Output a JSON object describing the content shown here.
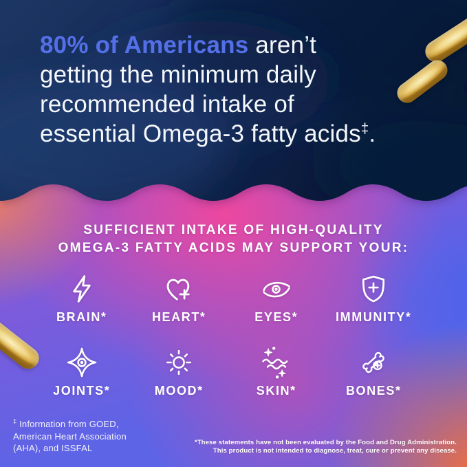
{
  "hero": {
    "line1_highlight": "80% of Americans",
    "line1_rest": " aren’t",
    "line2": "getting the minimum daily",
    "line3": "recommended intake of",
    "line4": "essential Omega-3 fatty acids",
    "line4_marker": "‡",
    "line4_period": "."
  },
  "benefits": {
    "heading_line1": "SUFFICIENT INTAKE OF HIGH-QUALITY",
    "heading_line2": "OMEGA-3 FATTY ACIDS MAY SUPPORT YOUR:",
    "items": [
      {
        "label": "BRAIN*",
        "icon": "lightning-icon"
      },
      {
        "label": "HEART*",
        "icon": "heart-plus-icon"
      },
      {
        "label": "EYES*",
        "icon": "eye-icon"
      },
      {
        "label": "IMMUNITY*",
        "icon": "shield-plus-icon"
      },
      {
        "label": "JOINTS*",
        "icon": "joint-star-icon"
      },
      {
        "label": "MOOD*",
        "icon": "sun-icon"
      },
      {
        "label": "SKIN*",
        "icon": "skin-sparkles-icon"
      },
      {
        "label": "BONES*",
        "icon": "bone-plus-icon"
      }
    ]
  },
  "footnotes": {
    "left_marker": "‡",
    "left_text": "Information from GOED,\nAmerican Heart Association\n(AHA), and ISSFAL",
    "right": "*These statements have not been evaluated by the Food and Drug Administration.\nThis product is not intended to diagnose, treat, cure or prevent any disease."
  },
  "decor": {
    "capsule_count": 3
  },
  "colors": {
    "navy_top": "#13294f",
    "navy_dark": "#0a1834",
    "headline_blue": "#5470e8",
    "hot_pink": "#f5469a",
    "coral": "#f4825c",
    "periwinkle": "#5f64e6",
    "violet": "#9355cf",
    "orange": "#f46f37",
    "capsule_gold": "#eccd74",
    "text_white": "#ffffff"
  }
}
